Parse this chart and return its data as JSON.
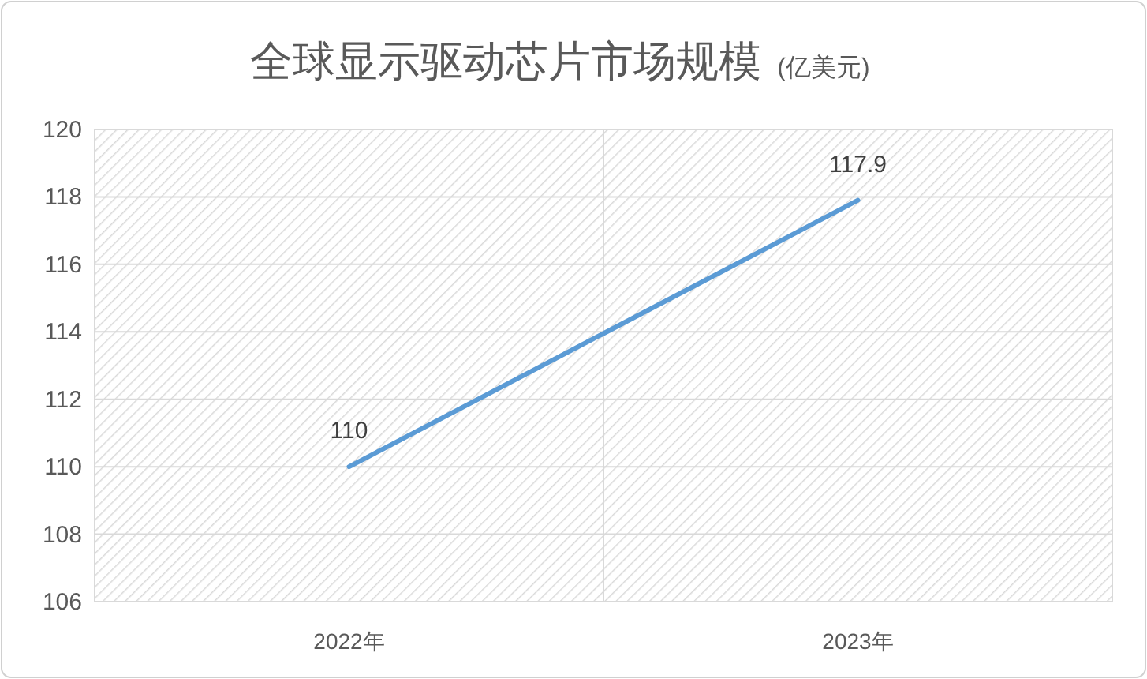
{
  "chart_data": {
    "type": "line",
    "title": "全球显示驱动芯片市场规模",
    "subtitle": "(亿美元)",
    "categories": [
      "2022年",
      "2023年"
    ],
    "series": [
      {
        "color": "#5b9bd5",
        "values": [
          110,
          117.9
        ]
      }
    ],
    "ylim": [
      106,
      120
    ],
    "yticks": [
      106,
      108,
      110,
      112,
      114,
      116,
      118,
      120
    ],
    "grid": true,
    "data_labels": true,
    "marker": "none",
    "line_style": "solid"
  }
}
